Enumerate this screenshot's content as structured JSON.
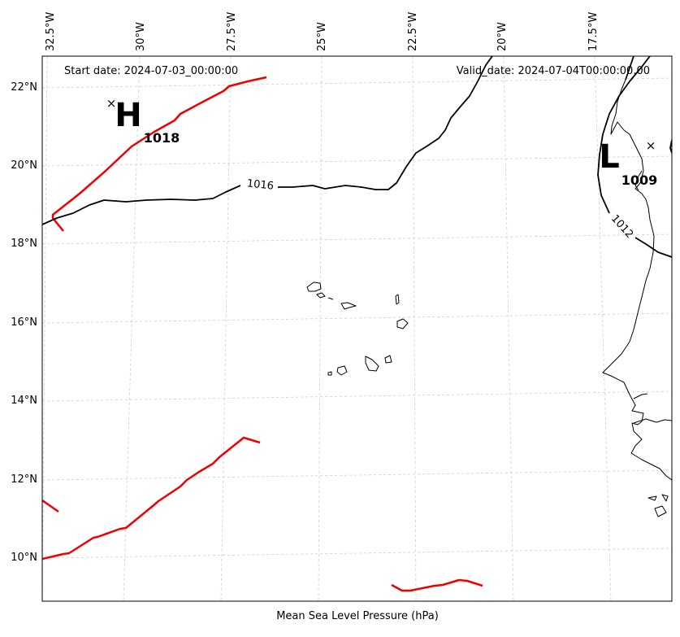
{
  "map": {
    "title": "Mean Sea Level Pressure (hPa)",
    "start_date": "Start date: 2024-07-03_00:00:00",
    "valid_date": "Valid_date: 2024-07-04T00:00:00.00",
    "lon_ticks": [
      "32.5°W",
      "30°W",
      "27.5°W",
      "25°W",
      "22.5°W",
      "20°W",
      "17.5°W"
    ],
    "lat_ticks": [
      "22°N",
      "20°N",
      "18°N",
      "16°N",
      "14°N",
      "12°N",
      "10°N"
    ],
    "contour_labels": [
      "1016",
      "1012"
    ],
    "pressure_centers": [
      {
        "symbol": "H",
        "value": "1018"
      },
      {
        "symbol": "L",
        "value": "1009"
      }
    ],
    "colors": {
      "front": "#ee0000",
      "isobar": "#000000",
      "grid": "#cccccc"
    }
  }
}
